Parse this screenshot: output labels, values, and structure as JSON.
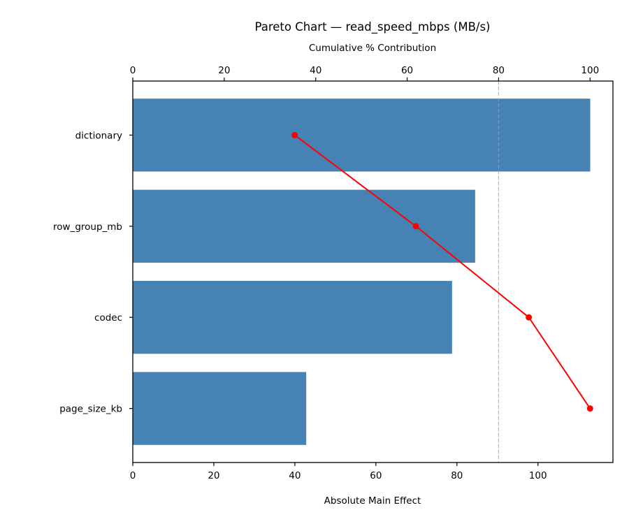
{
  "chart_data": {
    "type": "bar",
    "orientation": "horizontal",
    "title": "Pareto Chart — read_speed_mbps (MB/s)",
    "xlabel": "Absolute Main Effect",
    "x2label": "Cumulative % Contribution",
    "ylabel": "",
    "categories": [
      "dictionary",
      "row_group_mb",
      "codec",
      "page_size_kb"
    ],
    "series": [
      {
        "name": "Absolute Main Effect",
        "type": "bar",
        "axis": "bottom",
        "color": "#4682b4",
        "values": [
          112.9,
          84.5,
          78.8,
          42.8
        ]
      },
      {
        "name": "Cumulative % Contribution",
        "type": "line",
        "axis": "top",
        "color": "#ff0000",
        "values": [
          35.4,
          61.9,
          86.6,
          100.0
        ]
      }
    ],
    "threshold": {
      "value": 80,
      "axis": "top",
      "style": "dashed",
      "color": "#f08080"
    },
    "xlim": [
      0,
      118.5
    ],
    "xticks": [
      0,
      20,
      40,
      60,
      80,
      100
    ],
    "x2lim": [
      0,
      105
    ],
    "x2ticks": [
      0,
      20,
      40,
      60,
      80,
      100
    ],
    "grid": false,
    "legend": null
  }
}
